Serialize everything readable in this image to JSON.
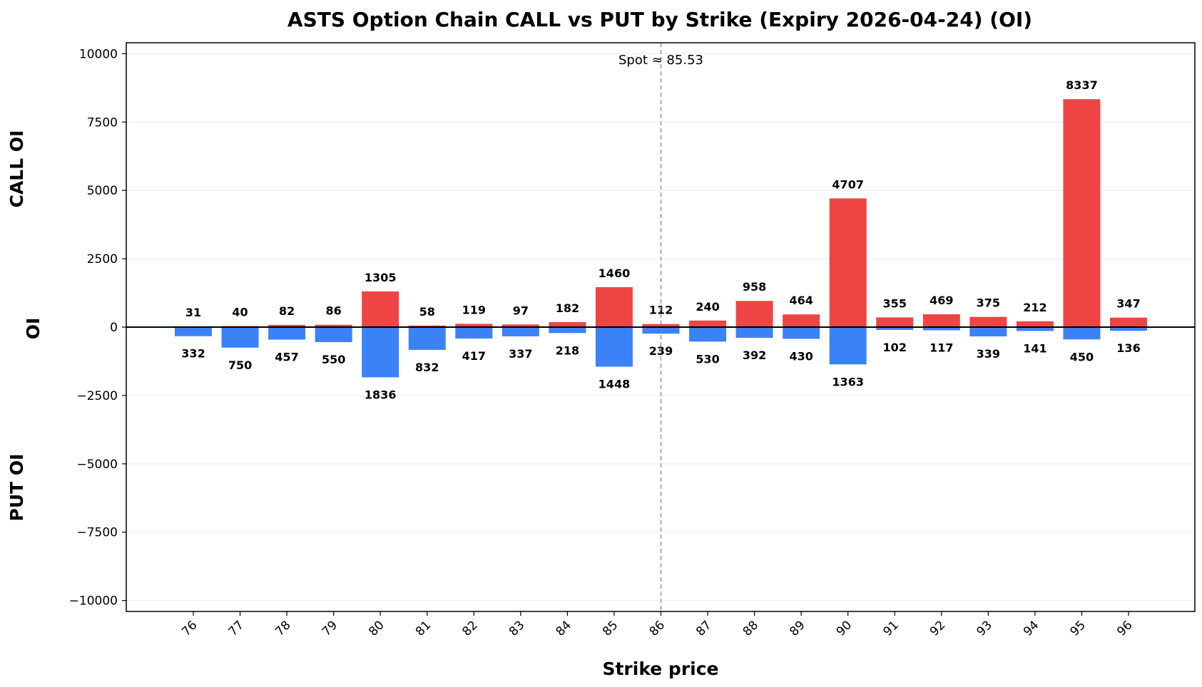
{
  "chart_data": {
    "type": "bar",
    "title": "ASTS Option Chain CALL vs PUT by Strike (Expiry 2026-04-24) (OI)",
    "xlabel": "Strike price",
    "ylabel": "OI",
    "ylabel_top": "CALL OI",
    "ylabel_bottom": "PUT OI",
    "categories": [
      "76",
      "77",
      "78",
      "79",
      "80",
      "81",
      "82",
      "83",
      "84",
      "85",
      "86",
      "87",
      "88",
      "89",
      "90",
      "91",
      "92",
      "93",
      "94",
      "95",
      "96"
    ],
    "series": [
      {
        "name": "CALL",
        "color": "#ef4444",
        "values": [
          31,
          40,
          82,
          86,
          1305,
          58,
          119,
          97,
          182,
          1460,
          112,
          240,
          958,
          464,
          4707,
          355,
          469,
          375,
          212,
          8337,
          347
        ]
      },
      {
        "name": "PUT",
        "color": "#3b82f6",
        "values": [
          332,
          750,
          457,
          550,
          1836,
          832,
          417,
          337,
          218,
          1448,
          239,
          530,
          392,
          430,
          1363,
          102,
          117,
          339,
          141,
          450,
          136
        ]
      }
    ],
    "ylim": [
      -10400,
      10400
    ],
    "yticks": [
      10000,
      7500,
      5000,
      2500,
      0,
      -2500,
      -5000,
      -7500,
      -10000
    ],
    "ytick_labels": [
      "10000",
      "7500",
      "5000",
      "2500",
      "0",
      "−2500",
      "−5000",
      "−7500",
      "−10000"
    ],
    "spot": 85.53,
    "spot_label": "Spot ≈ 85.53",
    "grid": true
  }
}
